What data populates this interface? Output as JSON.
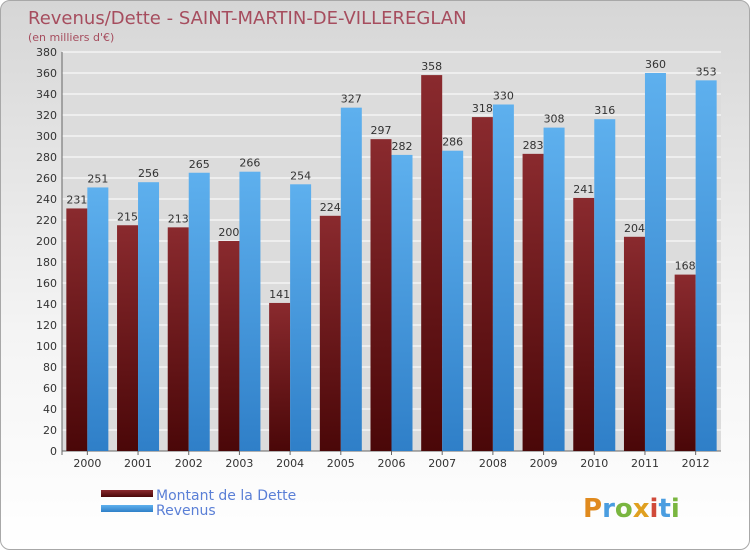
{
  "chart_data": {
    "type": "bar",
    "title": "Revenus/Dette - SAINT-MARTIN-DE-VILLEREGLAN",
    "subtitle": "(en milliers d'€)",
    "categories": [
      "2000",
      "2001",
      "2002",
      "2003",
      "2004",
      "2005",
      "2006",
      "2007",
      "2008",
      "2009",
      "2010",
      "2011",
      "2012"
    ],
    "series": [
      {
        "name": "Montant de la Dette",
        "values": [
          231,
          215,
          213,
          200,
          141,
          224,
          297,
          358,
          318,
          283,
          241,
          204,
          168
        ],
        "color": "#7a1a1e"
      },
      {
        "name": "Revenus",
        "values": [
          251,
          256,
          265,
          266,
          254,
          327,
          282,
          286,
          330,
          308,
          316,
          360,
          353
        ],
        "color": "#4a9de0"
      }
    ],
    "ylim": [
      0,
      380
    ],
    "yticks": [
      0,
      20,
      40,
      60,
      80,
      100,
      120,
      140,
      160,
      180,
      200,
      220,
      240,
      260,
      280,
      300,
      320,
      340,
      360,
      380
    ],
    "grid": true,
    "legend_position": "bottom-left",
    "watermark": "Proxiti"
  }
}
